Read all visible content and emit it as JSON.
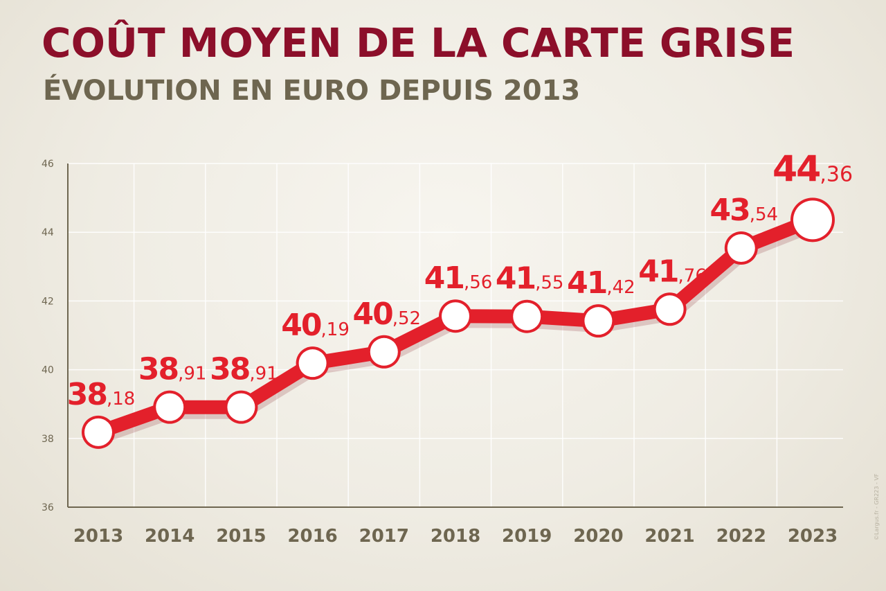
{
  "header": {
    "title": "COÛT MOYEN DE LA CARTE GRISE",
    "subtitle": "ÉVOLUTION EN EURO DEPUIS 2013"
  },
  "credit": "©Largus.fr - GR223 - VF",
  "colors": {
    "title": "#8c0f2a",
    "subtitle": "#6e6650",
    "line": "#e3202b",
    "marker_fill": "#ffffff"
  },
  "chart_data": {
    "type": "line",
    "title": "COÛT MOYEN DE LA CARTE GRISE",
    "subtitle": "ÉVOLUTION EN EURO DEPUIS 2013",
    "categories": [
      "2013",
      "2014",
      "2015",
      "2016",
      "2017",
      "2018",
      "2019",
      "2020",
      "2021",
      "2022",
      "2023"
    ],
    "series": [
      {
        "values": [
          38.18,
          38.91,
          38.91,
          40.19,
          40.52,
          41.56,
          41.55,
          41.42,
          41.76,
          43.54,
          44.36
        ],
        "labels": [
          [
            "38",
            ",18"
          ],
          [
            "38",
            ",91"
          ],
          [
            "38",
            ",91"
          ],
          [
            "40",
            ",19"
          ],
          [
            "40",
            ",52"
          ],
          [
            "41",
            ",56"
          ],
          [
            "41",
            ",55"
          ],
          [
            "41",
            ",42"
          ],
          [
            "41",
            ",76"
          ],
          [
            "43",
            ",54"
          ],
          [
            "44",
            ",36"
          ]
        ]
      }
    ],
    "ylim": [
      36,
      46
    ],
    "yticks": [
      "36",
      "38",
      "40",
      "42",
      "44",
      "46"
    ],
    "grid": true,
    "legend": "none"
  }
}
